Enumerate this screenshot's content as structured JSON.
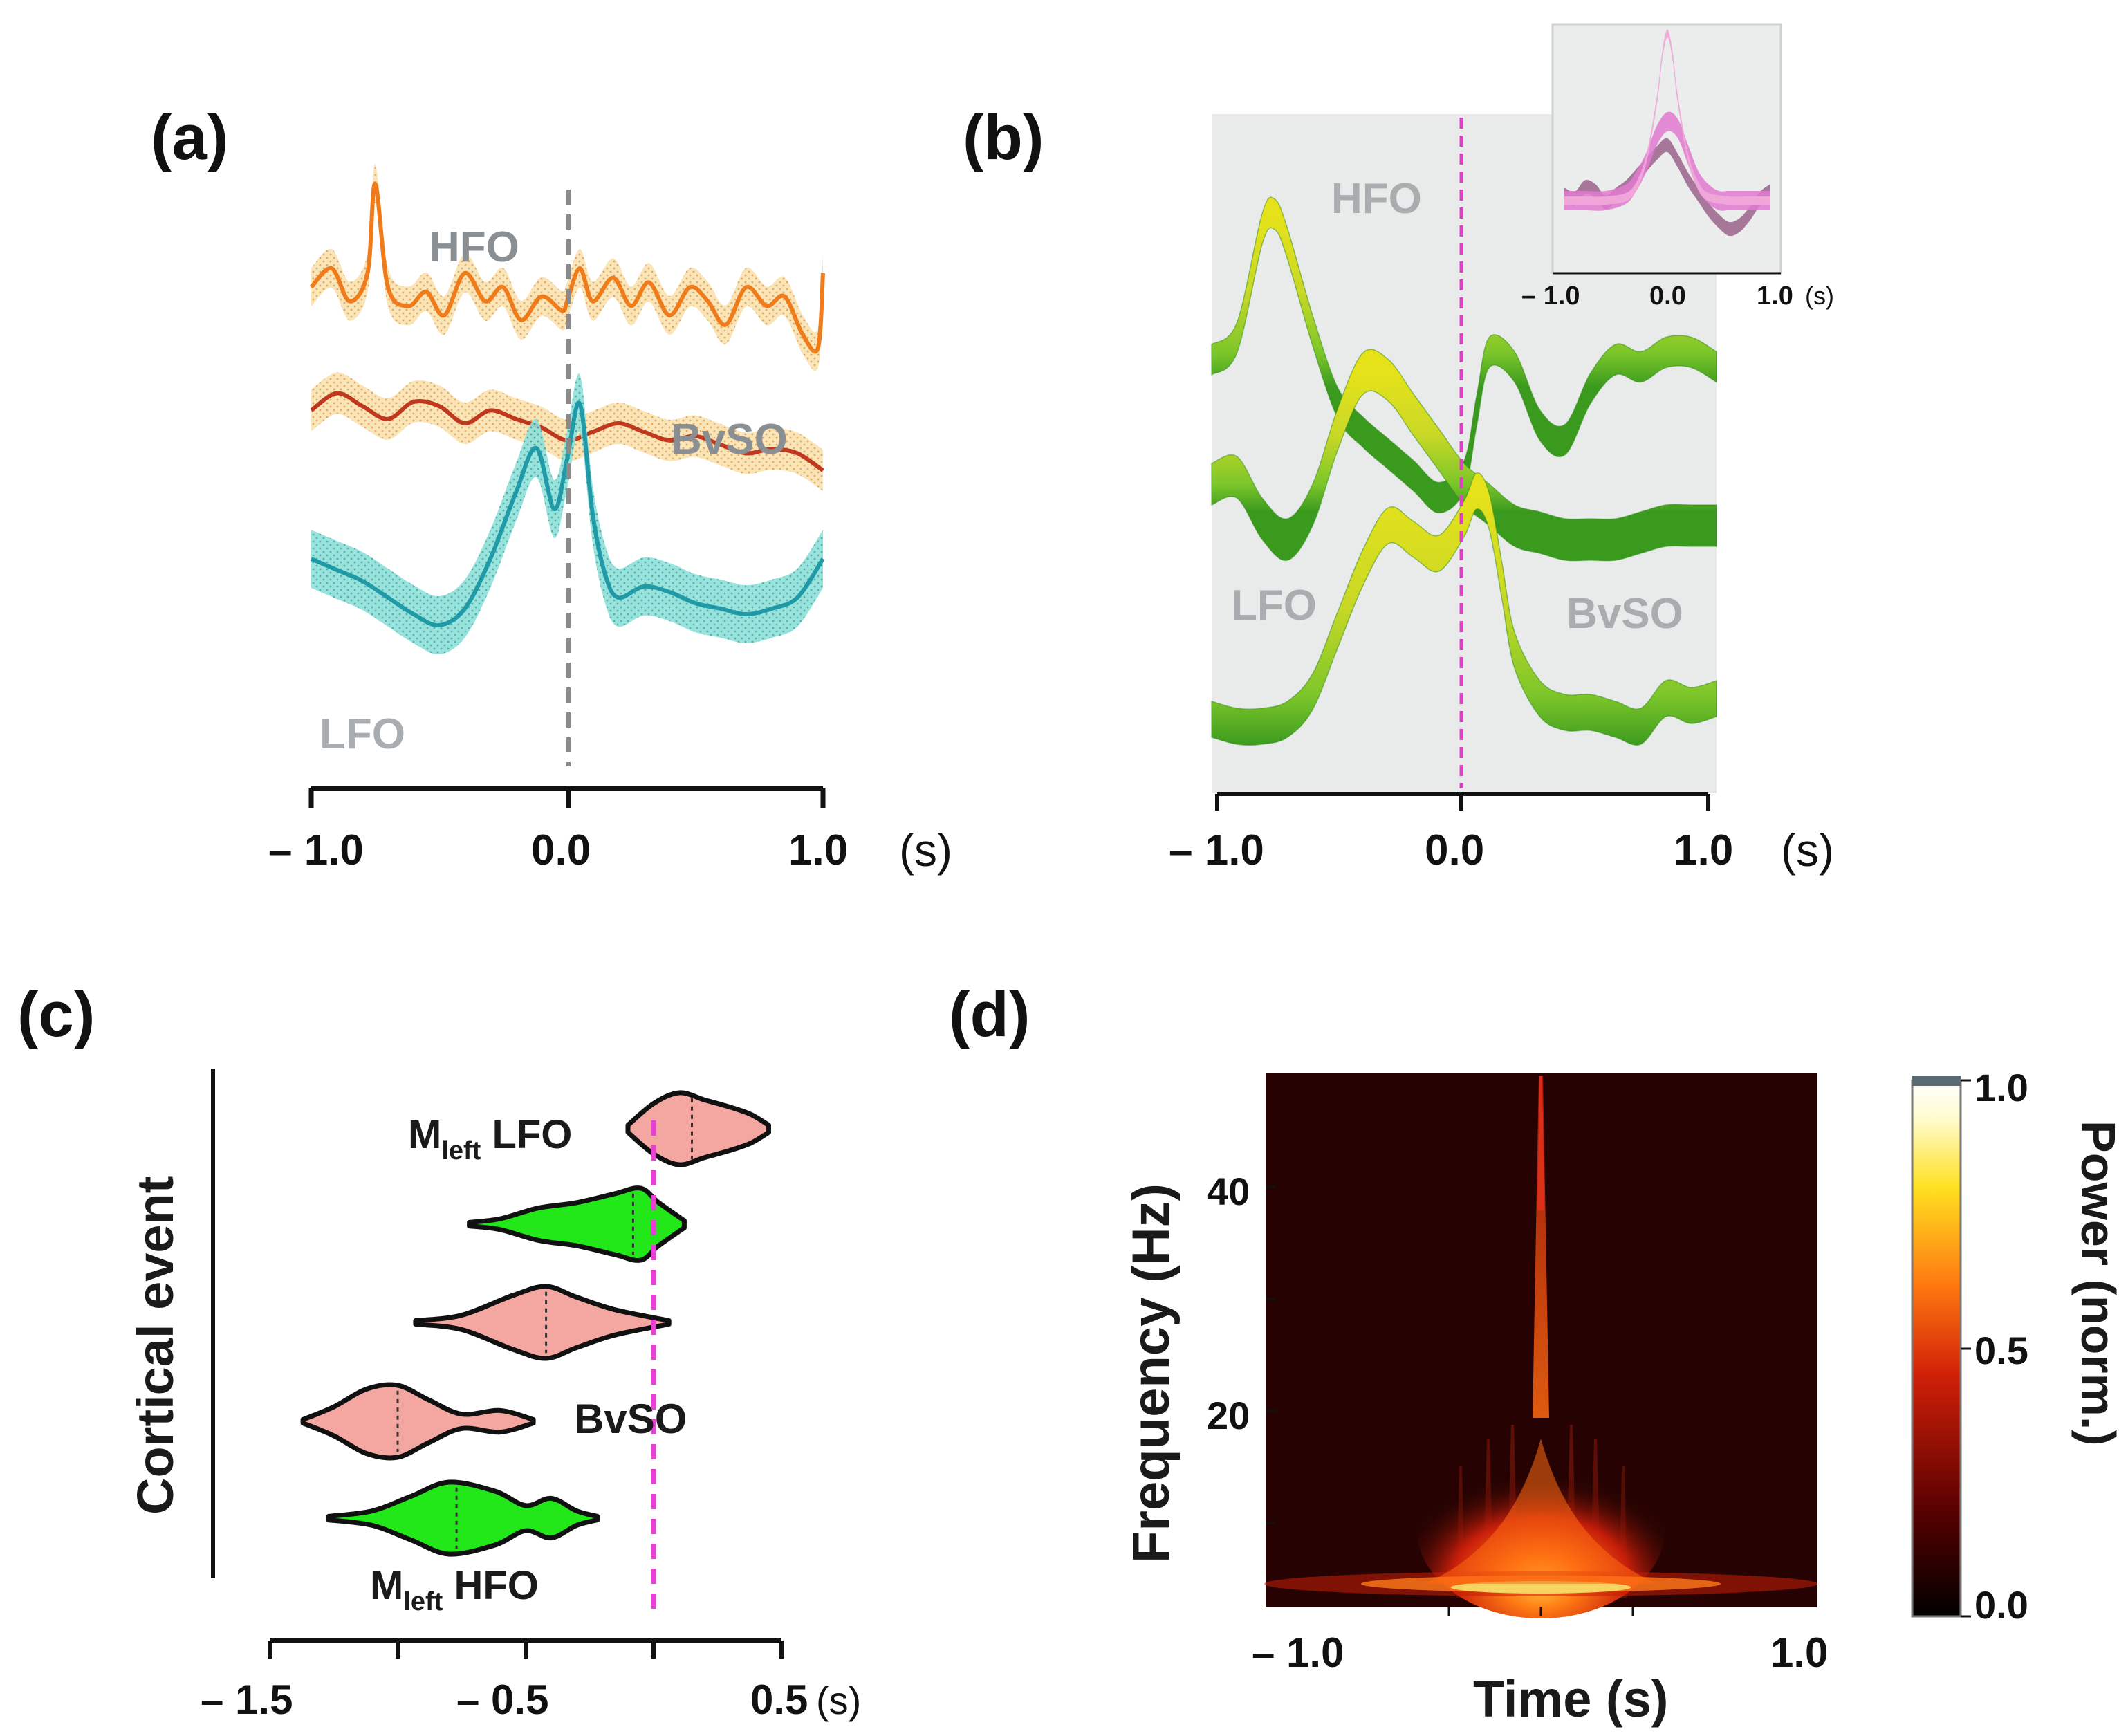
{
  "panels": {
    "a": {
      "label": "(a)"
    },
    "b": {
      "label": "(b)"
    },
    "c": {
      "label": "(c)"
    },
    "d": {
      "label": "(d)"
    }
  },
  "chart_data": [
    {
      "panel": "(a)",
      "type": "line",
      "xlim": [
        -1.0,
        1.0
      ],
      "ticks": [
        "– 1.0",
        "0.0",
        "1.0"
      ],
      "unit": "(s)",
      "colors": {
        "HFO": "#f07b1a",
        "BvSO": "#c0391e",
        "LFO": "#1f9aa6",
        "band_orange": "#f5d79a",
        "band_teal": "#8fe0d8",
        "marker": "#8a8a8a"
      },
      "series": [
        {
          "name": "HFO",
          "x": [
            -1.0,
            -0.92,
            -0.85,
            -0.78,
            -0.75,
            -0.7,
            -0.62,
            -0.55,
            -0.48,
            -0.4,
            -0.32,
            -0.25,
            -0.18,
            -0.1,
            -0.02,
            0.0,
            0.05,
            0.1,
            0.18,
            0.25,
            0.32,
            0.4,
            0.48,
            0.55,
            0.62,
            0.7,
            0.78,
            0.85,
            0.92,
            0.98,
            1.0
          ],
          "values": [
            3.6,
            4.0,
            3.3,
            3.9,
            5.8,
            3.6,
            3.2,
            3.5,
            3.0,
            3.9,
            3.3,
            3.6,
            2.9,
            3.4,
            3.1,
            3.3,
            4.0,
            3.3,
            3.8,
            3.2,
            3.7,
            3.0,
            3.6,
            3.3,
            2.8,
            3.6,
            3.2,
            3.4,
            2.6,
            2.3,
            3.9
          ]
        },
        {
          "name": "BvSO",
          "x": [
            -1.0,
            -0.9,
            -0.8,
            -0.7,
            -0.6,
            -0.5,
            -0.4,
            -0.3,
            -0.2,
            -0.1,
            0.0,
            0.1,
            0.2,
            0.3,
            0.4,
            0.5,
            0.6,
            0.7,
            0.8,
            0.9,
            1.0
          ],
          "values": [
            1.8,
            2.2,
            1.9,
            1.6,
            2.0,
            1.9,
            1.5,
            1.8,
            1.6,
            1.4,
            1.1,
            1.3,
            1.5,
            1.3,
            1.1,
            1.2,
            1.0,
            0.8,
            0.9,
            0.8,
            0.4
          ]
        },
        {
          "name": "LFO",
          "x": [
            -1.0,
            -0.9,
            -0.8,
            -0.7,
            -0.6,
            -0.5,
            -0.4,
            -0.3,
            -0.2,
            -0.12,
            -0.05,
            0.0,
            0.05,
            0.1,
            0.15,
            0.2,
            0.3,
            0.4,
            0.5,
            0.6,
            0.7,
            0.8,
            0.9,
            1.0
          ],
          "values": [
            -0.6,
            -0.8,
            -1.0,
            -1.3,
            -1.6,
            -1.8,
            -1.5,
            -0.6,
            0.6,
            1.4,
            0.3,
            1.2,
            2.2,
            0.2,
            -0.9,
            -1.3,
            -1.1,
            -1.2,
            -1.4,
            -1.5,
            -1.6,
            -1.5,
            -1.3,
            -0.6
          ]
        }
      ],
      "labels": [
        "HFO",
        "BvSO",
        "LFO"
      ]
    },
    {
      "panel": "(b)",
      "type": "area",
      "xlim": [
        -1.0,
        1.0
      ],
      "ticks": [
        "– 1.0",
        "0.0",
        "1.0"
      ],
      "unit": "(s)",
      "colors": {
        "background": "#e9ebea",
        "dark_green": "#3a9a1e",
        "light_green": "#7cc62a",
        "yellow": "#e6e21a",
        "marker": "#e040c8"
      },
      "series": [
        {
          "name": "HFO",
          "x": [
            -1.0,
            -0.9,
            -0.8,
            -0.75,
            -0.7,
            -0.6,
            -0.5,
            -0.4,
            -0.3,
            -0.2,
            -0.1,
            0.0,
            0.05,
            0.1,
            0.2,
            0.3,
            0.4,
            0.5,
            0.6,
            0.7,
            0.8,
            0.9,
            1.0
          ],
          "values": [
            0.0,
            0.3,
            1.8,
            2.0,
            1.6,
            0.4,
            -0.6,
            -1.0,
            -1.3,
            -1.6,
            -1.9,
            -1.6,
            -0.7,
            0.1,
            -0.1,
            -0.9,
            -1.1,
            -0.4,
            0.0,
            -0.1,
            0.1,
            0.1,
            -0.1
          ]
        },
        {
          "name": "BvSO",
          "x": [
            -1.0,
            -0.9,
            -0.8,
            -0.7,
            -0.6,
            -0.5,
            -0.4,
            -0.3,
            -0.2,
            -0.1,
            0.0,
            0.1,
            0.2,
            0.3,
            0.4,
            0.5,
            0.6,
            0.7,
            0.8,
            0.9,
            1.0
          ],
          "values": [
            0.0,
            0.1,
            -0.5,
            -0.8,
            -0.3,
            0.8,
            1.6,
            1.5,
            1.0,
            0.5,
            0.0,
            -0.3,
            -0.6,
            -0.7,
            -0.8,
            -0.8,
            -0.8,
            -0.7,
            -0.6,
            -0.6,
            -0.6
          ]
        },
        {
          "name": "LFO",
          "x": [
            -1.0,
            -0.9,
            -0.8,
            -0.7,
            -0.6,
            -0.5,
            -0.4,
            -0.3,
            -0.2,
            -0.1,
            0.0,
            0.05,
            0.1,
            0.15,
            0.2,
            0.3,
            0.4,
            0.5,
            0.6,
            0.7,
            0.8,
            0.9,
            1.0
          ],
          "values": [
            0.0,
            -0.1,
            -0.1,
            0.0,
            0.4,
            1.3,
            2.2,
            2.8,
            2.6,
            2.4,
            2.9,
            3.3,
            3.0,
            2.0,
            1.0,
            0.3,
            0.1,
            0.1,
            0.0,
            -0.1,
            0.3,
            0.2,
            0.3
          ]
        }
      ],
      "labels": [
        "HFO",
        "LFO",
        "BvSO"
      ],
      "inset": {
        "xlim": [
          -1.0,
          1.0
        ],
        "ticks": [
          "– 1.0",
          "0.0",
          "1.0"
        ],
        "unit": "(s)",
        "colors": {
          "background": "#ebecec",
          "pink_light": "#f0a8d8",
          "pink": "#e07ad0",
          "mauve": "#a06a90"
        },
        "series": [
          {
            "name": "mauve",
            "x": [
              -1.0,
              -0.9,
              -0.8,
              -0.7,
              -0.6,
              -0.5,
              -0.4,
              -0.3,
              -0.2,
              -0.1,
              0.0,
              0.1,
              0.2,
              0.3,
              0.4,
              0.5,
              0.6,
              0.7,
              0.8,
              0.9,
              1.0
            ],
            "values": [
              -0.3,
              -0.4,
              -0.1,
              -0.2,
              -0.5,
              -0.3,
              -0.1,
              0.2,
              0.5,
              0.8,
              1.0,
              0.6,
              0.1,
              -0.3,
              -0.7,
              -1.0,
              -1.2,
              -1.1,
              -0.8,
              -0.4,
              -0.2
            ]
          },
          {
            "name": "pink",
            "x": [
              -1.0,
              -0.8,
              -0.6,
              -0.4,
              -0.3,
              -0.2,
              -0.1,
              0.0,
              0.1,
              0.2,
              0.3,
              0.4,
              0.5,
              0.6,
              0.8,
              1.0
            ],
            "values": [
              0.0,
              0.0,
              0.0,
              0.1,
              0.3,
              0.6,
              1.0,
              1.2,
              1.1,
              0.7,
              0.3,
              0.1,
              0.0,
              0.0,
              0.0,
              0.0
            ]
          },
          {
            "name": "pink_light",
            "x": [
              -1.0,
              -0.8,
              -0.6,
              -0.4,
              -0.3,
              -0.2,
              -0.1,
              -0.05,
              0.0,
              0.05,
              0.1,
              0.2,
              0.3,
              0.4,
              0.6,
              0.8,
              1.0
            ],
            "values": [
              0.0,
              0.0,
              0.0,
              0.05,
              0.2,
              0.6,
              1.4,
              2.0,
              2.3,
              2.0,
              1.4,
              0.6,
              0.2,
              0.05,
              0.0,
              0.0,
              0.0
            ]
          }
        ]
      }
    },
    {
      "panel": "(c)",
      "type": "violin",
      "xlim": [
        -1.5,
        0.5
      ],
      "ticks": [
        "– 1.5",
        "– 0.5",
        "0.5"
      ],
      "unit": "(s)",
      "ylabel": "Cortical event",
      "marker_x": 0.0,
      "colors": {
        "pink": "#f4a7a0",
        "green": "#22e81a",
        "marker": "#e93fd6"
      },
      "violins": [
        {
          "label_main": "M",
          "label_sub": "left",
          "label_rest": " LFO",
          "color": "pink",
          "min": -0.1,
          "max": 0.45,
          "median": 0.15,
          "profile": [
            [
              -0.1,
              0.1
            ],
            [
              0.0,
              0.7
            ],
            [
              0.1,
              1.0
            ],
            [
              0.2,
              0.8
            ],
            [
              0.3,
              0.6
            ],
            [
              0.38,
              0.4
            ],
            [
              0.45,
              0.1
            ]
          ]
        },
        {
          "label_main": "",
          "label_sub": "",
          "label_rest": "",
          "color": "green",
          "min": -0.72,
          "max": 0.12,
          "median": -0.08,
          "profile": [
            [
              -0.72,
              0.05
            ],
            [
              -0.6,
              0.15
            ],
            [
              -0.45,
              0.45
            ],
            [
              -0.3,
              0.6
            ],
            [
              -0.15,
              0.85
            ],
            [
              -0.05,
              1.0
            ],
            [
              0.02,
              0.6
            ],
            [
              0.12,
              0.1
            ]
          ]
        },
        {
          "label_main": "",
          "label_sub": "",
          "label_rest": "",
          "color": "pink",
          "min": -0.93,
          "max": 0.06,
          "median": -0.42,
          "profile": [
            [
              -0.93,
              0.05
            ],
            [
              -0.75,
              0.2
            ],
            [
              -0.55,
              0.75
            ],
            [
              -0.42,
              1.0
            ],
            [
              -0.3,
              0.7
            ],
            [
              -0.15,
              0.35
            ],
            [
              0.06,
              0.05
            ]
          ]
        },
        {
          "label_main": "BvSO",
          "label_sub": "",
          "label_rest": "",
          "color": "pink",
          "min": -1.37,
          "max": -0.47,
          "median": -1.0,
          "profile": [
            [
              -1.37,
              0.05
            ],
            [
              -1.25,
              0.4
            ],
            [
              -1.12,
              0.9
            ],
            [
              -1.0,
              1.0
            ],
            [
              -0.88,
              0.6
            ],
            [
              -0.75,
              0.2
            ],
            [
              -0.6,
              0.3
            ],
            [
              -0.47,
              0.05
            ]
          ]
        },
        {
          "label_main": "M",
          "label_sub": "left",
          "label_rest": " HFO",
          "color": "green",
          "min": -1.27,
          "max": -0.22,
          "median": -0.77,
          "profile": [
            [
              -1.27,
              0.05
            ],
            [
              -1.1,
              0.2
            ],
            [
              -0.95,
              0.6
            ],
            [
              -0.8,
              1.0
            ],
            [
              -0.62,
              0.75
            ],
            [
              -0.5,
              0.35
            ],
            [
              -0.4,
              0.55
            ],
            [
              -0.3,
              0.2
            ],
            [
              -0.22,
              0.05
            ]
          ]
        }
      ]
    },
    {
      "panel": "(d)",
      "type": "heatmap",
      "xlim": [
        -1.0,
        1.0
      ],
      "ylim": [
        0,
        50
      ],
      "xticks": [
        "– 1.0",
        "1.0"
      ],
      "yticks": [
        "40",
        "20"
      ],
      "xlabel": "Time (s)",
      "ylabel": "Frequency (Hz)",
      "colorbar": {
        "label": "Power (norm.)",
        "ticks": [
          "1.0",
          "0.5",
          "0.0"
        ]
      },
      "colors": {
        "background": "#260302",
        "hot": "#ff7a1a",
        "mid": "#c81e0a",
        "peak": "#f5e06a"
      }
    }
  ]
}
